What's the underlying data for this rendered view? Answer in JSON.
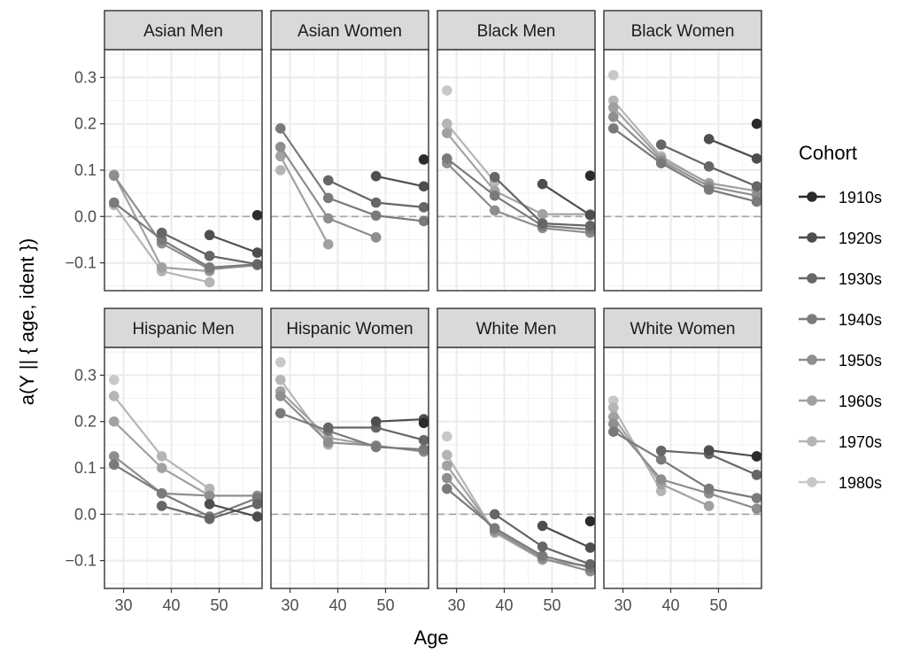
{
  "chart_data": {
    "type": "line",
    "xlabel": "Age",
    "ylabel": "a(Y || { age, ident })",
    "xlim": [
      26,
      59
    ],
    "ylim": [
      -0.16,
      0.36
    ],
    "xticks": [
      "30",
      "40",
      "50"
    ],
    "yticks": [
      "0.3",
      "0.2",
      "0.1",
      "0.0",
      "−0.1"
    ],
    "reference_line_y": 0,
    "grid": true,
    "legend": {
      "title": "Cohort",
      "position": "right",
      "entries": [
        "1910s",
        "1920s",
        "1930s",
        "1940s",
        "1950s",
        "1960s",
        "1970s",
        "1980s"
      ],
      "colors": [
        "#2b2b2b",
        "#4e4e4e",
        "#666666",
        "#7a7a7a",
        "#8e8e8e",
        "#a1a1a1",
        "#b5b5b5",
        "#c8c8c8"
      ]
    },
    "panels": [
      {
        "title": "Asian Men",
        "series": [
          {
            "cohort": "1910s",
            "x": [
              58
            ],
            "y": [
              0.003
            ]
          },
          {
            "cohort": "1920s",
            "x": [
              48,
              58
            ],
            "y": [
              -0.04,
              -0.078
            ]
          },
          {
            "cohort": "1930s",
            "x": [
              38,
              48,
              58
            ],
            "y": [
              -0.035,
              -0.085,
              -0.103
            ]
          },
          {
            "cohort": "1940s",
            "x": [
              28,
              38,
              48,
              58
            ],
            "y": [
              0.03,
              -0.05,
              -0.11,
              -0.103
            ]
          },
          {
            "cohort": "1950s",
            "x": [
              28,
              38,
              48,
              58
            ],
            "y": [
              0.088,
              -0.058,
              -0.114,
              -0.105
            ]
          },
          {
            "cohort": "1960s",
            "x": [
              28,
              38,
              48
            ],
            "y": [
              0.09,
              -0.11,
              -0.118
            ]
          },
          {
            "cohort": "1970s",
            "x": [
              28,
              38,
              48
            ],
            "y": [
              0.025,
              -0.118,
              -0.142
            ]
          }
        ]
      },
      {
        "title": "Asian Women",
        "series": [
          {
            "cohort": "1910s",
            "x": [
              58
            ],
            "y": [
              0.123
            ]
          },
          {
            "cohort": "1920s",
            "x": [
              48,
              58
            ],
            "y": [
              0.087,
              0.065
            ]
          },
          {
            "cohort": "1930s",
            "x": [
              38,
              48,
              58
            ],
            "y": [
              0.078,
              0.03,
              0.02
            ]
          },
          {
            "cohort": "1940s",
            "x": [
              28,
              38,
              48,
              58
            ],
            "y": [
              0.19,
              0.04,
              0.002,
              -0.01
            ]
          },
          {
            "cohort": "1950s",
            "x": [
              28,
              38,
              48
            ],
            "y": [
              0.15,
              -0.004,
              -0.045
            ]
          },
          {
            "cohort": "1960s",
            "x": [
              28,
              38
            ],
            "y": [
              0.13,
              -0.06
            ]
          },
          {
            "cohort": "1970s",
            "x": [
              28
            ],
            "y": [
              0.1
            ]
          }
        ]
      },
      {
        "title": "Black Men",
        "series": [
          {
            "cohort": "1910s",
            "x": [
              58
            ],
            "y": [
              0.088
            ]
          },
          {
            "cohort": "1920s",
            "x": [
              48,
              58
            ],
            "y": [
              0.07,
              0.003
            ]
          },
          {
            "cohort": "1930s",
            "x": [
              38,
              48,
              58
            ],
            "y": [
              0.085,
              -0.015,
              -0.02
            ]
          },
          {
            "cohort": "1940s",
            "x": [
              28,
              38,
              48,
              58
            ],
            "y": [
              0.125,
              0.045,
              -0.02,
              -0.028
            ]
          },
          {
            "cohort": "1950s",
            "x": [
              28,
              38,
              48,
              58
            ],
            "y": [
              0.115,
              0.013,
              -0.025,
              -0.035
            ]
          },
          {
            "cohort": "1960s",
            "x": [
              28,
              38,
              48,
              58
            ],
            "y": [
              0.18,
              0.055,
              0.005,
              0.005
            ]
          },
          {
            "cohort": "1970s",
            "x": [
              28,
              38
            ],
            "y": [
              0.2,
              0.075
            ]
          },
          {
            "cohort": "1980s",
            "x": [
              28
            ],
            "y": [
              0.272
            ]
          }
        ]
      },
      {
        "title": "Black Women",
        "series": [
          {
            "cohort": "1910s",
            "x": [
              58
            ],
            "y": [
              0.2
            ]
          },
          {
            "cohort": "1920s",
            "x": [
              48,
              58
            ],
            "y": [
              0.167,
              0.125
            ]
          },
          {
            "cohort": "1930s",
            "x": [
              38,
              48,
              58
            ],
            "y": [
              0.155,
              0.108,
              0.065
            ]
          },
          {
            "cohort": "1940s",
            "x": [
              28,
              38,
              48,
              58
            ],
            "y": [
              0.19,
              0.115,
              0.058,
              0.032
            ]
          },
          {
            "cohort": "1950s",
            "x": [
              28,
              38,
              48,
              58
            ],
            "y": [
              0.215,
              0.12,
              0.065,
              0.045
            ]
          },
          {
            "cohort": "1960s",
            "x": [
              28,
              38,
              48,
              58
            ],
            "y": [
              0.235,
              0.125,
              0.072,
              0.055
            ]
          },
          {
            "cohort": "1970s",
            "x": [
              28,
              38,
              48
            ],
            "y": [
              0.25,
              0.13,
              0.07
            ]
          },
          {
            "cohort": "1980s",
            "x": [
              28
            ],
            "y": [
              0.305
            ]
          }
        ]
      },
      {
        "title": "Hispanic Men",
        "series": [
          {
            "cohort": "1920s",
            "x": [
              48,
              58
            ],
            "y": [
              0.022,
              -0.005
            ]
          },
          {
            "cohort": "1930s",
            "x": [
              38,
              48,
              58
            ],
            "y": [
              0.018,
              -0.01,
              0.022
            ]
          },
          {
            "cohort": "1940s",
            "x": [
              28,
              38,
              48,
              58
            ],
            "y": [
              0.107,
              0.045,
              -0.005,
              0.035
            ]
          },
          {
            "cohort": "1950s",
            "x": [
              28,
              38,
              48,
              58
            ],
            "y": [
              0.125,
              0.045,
              0.04,
              0.04
            ]
          },
          {
            "cohort": "1960s",
            "x": [
              28,
              38,
              48
            ],
            "y": [
              0.2,
              0.1,
              0.04
            ]
          },
          {
            "cohort": "1970s",
            "x": [
              28,
              38,
              48
            ],
            "y": [
              0.255,
              0.125,
              0.055
            ]
          },
          {
            "cohort": "1980s",
            "x": [
              28
            ],
            "y": [
              0.29
            ]
          }
        ]
      },
      {
        "title": "Hispanic Women",
        "series": [
          {
            "cohort": "1910s",
            "x": [
              58
            ],
            "y": [
              0.197
            ]
          },
          {
            "cohort": "1920s",
            "x": [
              48,
              58
            ],
            "y": [
              0.2,
              0.205
            ]
          },
          {
            "cohort": "1930s",
            "x": [
              38,
              48,
              58
            ],
            "y": [
              0.187,
              0.187,
              0.16
            ]
          },
          {
            "cohort": "1940s",
            "x": [
              28,
              38,
              48,
              58
            ],
            "y": [
              0.218,
              0.18,
              0.145,
              0.14
            ]
          },
          {
            "cohort": "1950s",
            "x": [
              28,
              38,
              48,
              58
            ],
            "y": [
              0.255,
              0.155,
              0.148,
              0.135
            ]
          },
          {
            "cohort": "1960s",
            "x": [
              28,
              38,
              48
            ],
            "y": [
              0.265,
              0.165,
              0.148
            ]
          },
          {
            "cohort": "1970s",
            "x": [
              28,
              38
            ],
            "y": [
              0.29,
              0.15
            ]
          },
          {
            "cohort": "1980s",
            "x": [
              28
            ],
            "y": [
              0.328
            ]
          }
        ]
      },
      {
        "title": "White Men",
        "series": [
          {
            "cohort": "1910s",
            "x": [
              58
            ],
            "y": [
              -0.015
            ]
          },
          {
            "cohort": "1920s",
            "x": [
              48,
              58
            ],
            "y": [
              -0.025,
              -0.072
            ]
          },
          {
            "cohort": "1930s",
            "x": [
              38,
              48,
              58
            ],
            "y": [
              0.0,
              -0.07,
              -0.108
            ]
          },
          {
            "cohort": "1940s",
            "x": [
              28,
              38,
              48,
              58
            ],
            "y": [
              0.055,
              -0.03,
              -0.09,
              -0.115
            ]
          },
          {
            "cohort": "1950s",
            "x": [
              28,
              38,
              48,
              58
            ],
            "y": [
              0.078,
              -0.035,
              -0.095,
              -0.123
            ]
          },
          {
            "cohort": "1960s",
            "x": [
              28,
              38,
              48,
              58
            ],
            "y": [
              0.105,
              -0.038,
              -0.098,
              -0.112
            ]
          },
          {
            "cohort": "1970s",
            "x": [
              28,
              38,
              48
            ],
            "y": [
              0.128,
              -0.04,
              -0.098
            ]
          },
          {
            "cohort": "1980s",
            "x": [
              28
            ],
            "y": [
              0.168
            ]
          }
        ]
      },
      {
        "title": "White Women",
        "series": [
          {
            "cohort": "1910s",
            "x": [
              58
            ],
            "y": [
              0.125
            ]
          },
          {
            "cohort": "1920s",
            "x": [
              48,
              58
            ],
            "y": [
              0.138,
              0.125
            ]
          },
          {
            "cohort": "1930s",
            "x": [
              38,
              48,
              58
            ],
            "y": [
              0.137,
              0.13,
              0.085
            ]
          },
          {
            "cohort": "1940s",
            "x": [
              28,
              38,
              48,
              58
            ],
            "y": [
              0.178,
              0.118,
              0.055,
              0.035
            ]
          },
          {
            "cohort": "1950s",
            "x": [
              28,
              38,
              48,
              58
            ],
            "y": [
              0.195,
              0.075,
              0.045,
              0.012
            ]
          },
          {
            "cohort": "1960s",
            "x": [
              28,
              38,
              48
            ],
            "y": [
              0.21,
              0.065,
              0.018
            ]
          },
          {
            "cohort": "1970s",
            "x": [
              28,
              38
            ],
            "y": [
              0.23,
              0.05
            ]
          },
          {
            "cohort": "1980s",
            "x": [
              28
            ],
            "y": [
              0.245
            ]
          }
        ]
      }
    ]
  }
}
